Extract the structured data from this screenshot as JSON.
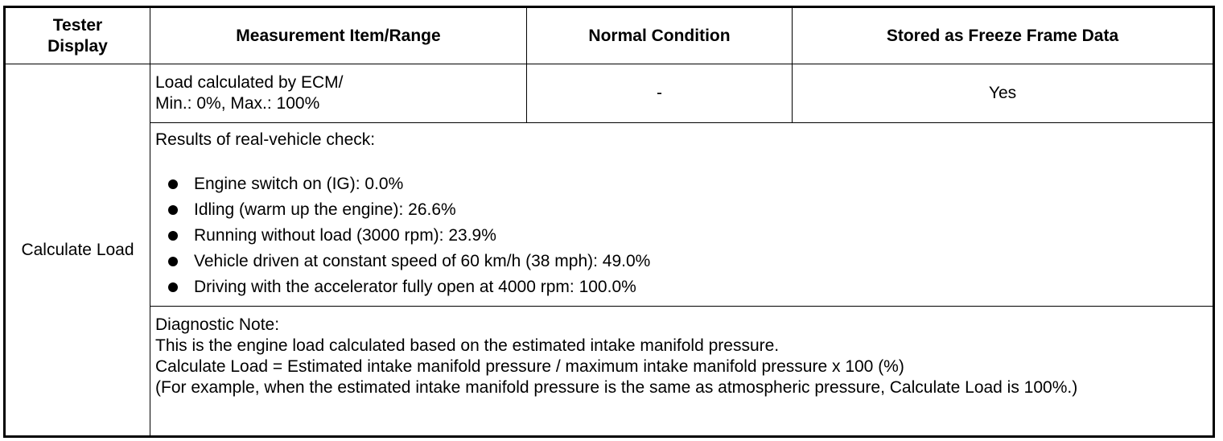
{
  "headers": {
    "tester_display": "Tester Display",
    "measurement": "Measurement Item/Range",
    "normal": "Normal Condition",
    "freeze": "Stored as Freeze Frame Data"
  },
  "row": {
    "name": "Calculate Load",
    "measurement_line1": "Load calculated by ECM/",
    "measurement_line2": "Min.: 0%, Max.: 100%",
    "normal": "-",
    "freeze": "Yes"
  },
  "results": {
    "title": "Results of real-vehicle check:",
    "items": [
      "Engine switch on (IG): 0.0%",
      "Idling (warm up the engine): 26.6%",
      "Running without load (3000 rpm): 23.9%",
      "Vehicle driven at constant speed of 60 km/h (38 mph): 49.0%",
      "Driving with the accelerator fully open at 4000 rpm: 100.0%"
    ]
  },
  "note": {
    "title": "Diagnostic Note:",
    "lines": [
      "This is the engine load calculated based on the estimated intake manifold pressure.",
      "Calculate Load = Estimated intake manifold pressure / maximum intake manifold pressure x 100 (%)",
      "(For example, when the estimated intake manifold pressure is the same as atmospheric pressure, Calculate Load is 100%.)"
    ]
  }
}
